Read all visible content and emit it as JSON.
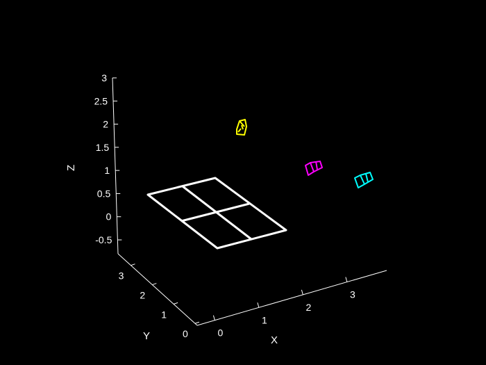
{
  "chart_data": {
    "type": "3d-scatter-wireframe",
    "title": "",
    "xlabel": "X",
    "ylabel": "Y",
    "zlabel": "Z",
    "xticks": [
      "0",
      "1",
      "2",
      "3"
    ],
    "yticks": [
      "0",
      "1",
      "2",
      "3"
    ],
    "zticks": [
      "-0.5",
      "0",
      "0.5",
      "1",
      "1.5",
      "2",
      "2.5",
      "3"
    ],
    "xlim": [
      -0.4,
      3.9
    ],
    "ylim": [
      -0.1,
      3.6
    ],
    "zlim": [
      -0.8,
      3.0
    ],
    "checkerboard": {
      "rows": 2,
      "cols": 2,
      "color": "#ffffff"
    },
    "cameras": [
      {
        "name": "",
        "color": "#ffff00"
      },
      {
        "name": "",
        "color": "#ff00ff"
      },
      {
        "name": "",
        "color": "#00ffff"
      }
    ],
    "background": "#000000",
    "grid": false
  }
}
